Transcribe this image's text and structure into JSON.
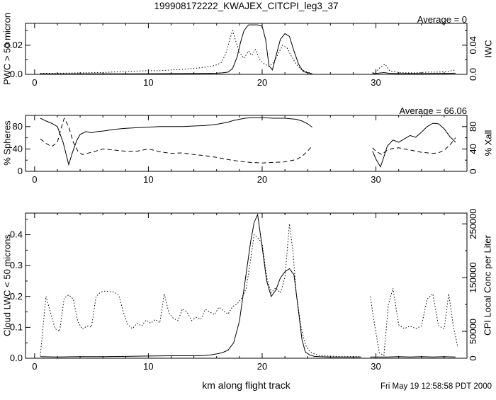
{
  "title": "199908172222_KWAJEX_CITCPI_leg3_37",
  "timestamp": "Fri May 19 12:58:58 PDT 2000",
  "colors": {
    "foreground": "#000000",
    "background": "#ffffff"
  },
  "chart_data": [
    {
      "type": "line",
      "annotation": "Average = 0",
      "xlim": [
        -0.8,
        38
      ],
      "x_ticks": [
        0,
        10,
        20,
        30
      ],
      "left": {
        "title": "PWC > 50 micron",
        "lim": [
          0,
          0.035
        ],
        "ticks": [
          {
            "v": 0,
            "label": "0.0"
          },
          {
            "v": 0.02,
            "label": "0.02"
          }
        ],
        "minor": [
          0.01,
          0.03
        ]
      },
      "right": {
        "title": "IWC",
        "lim": [
          0,
          0.07
        ],
        "ticks": [
          {
            "v": 0,
            "label": "0.0"
          },
          {
            "v": 0.04,
            "label": "0.04"
          }
        ],
        "minor": [
          0.02,
          0.06
        ]
      },
      "series": [
        {
          "name": "PWC > 50 micron",
          "axis": "left",
          "style": "solid",
          "x": [
            0.5,
            3,
            6,
            9,
            12,
            14,
            15,
            16,
            16.5,
            17,
            17.4,
            17.8,
            18.1,
            18.4,
            18.8,
            19.2,
            19.6,
            20,
            20.3,
            20.6,
            20.9,
            21.2,
            21.6,
            22,
            22.4,
            22.8,
            23.2,
            23.6,
            24,
            24.4,
            27,
            29.7,
            30.2,
            30.7,
            31.2,
            32,
            33,
            34,
            35,
            36,
            37
          ],
          "y": [
            0.0003,
            0.0003,
            0.0004,
            0.0004,
            0.0005,
            0.0006,
            0.0007,
            0.0008,
            0.001,
            0.0015,
            0.004,
            0.012,
            0.022,
            0.03,
            0.034,
            0.034,
            0.034,
            0.033,
            0.024,
            0.006,
            0.003,
            0.012,
            0.024,
            0.028,
            0.026,
            0.016,
            0.007,
            0.002,
            0.001,
            0.0005,
            null,
            0.0005,
            0.0008,
            0.0012,
            0.0007,
            0.0005,
            0.0005,
            0.0005,
            0.0006,
            0.0007,
            0.0008
          ]
        },
        {
          "name": "IWC",
          "axis": "right",
          "style": "dotted",
          "x": [
            0.5,
            2,
            4,
            6,
            8,
            10,
            11,
            12,
            13,
            14,
            14.5,
            15,
            15.5,
            16,
            16.4,
            16.8,
            17.1,
            17.4,
            17.7,
            18,
            18.4,
            18.8,
            19.1,
            19.4,
            19.8,
            20.2,
            20.6,
            21,
            21.4,
            21.8,
            22.2,
            22.6,
            23,
            23.4,
            23.8,
            24.2,
            27,
            29.7,
            30,
            30.4,
            30.8,
            31.2,
            31.8,
            32.5,
            33.5,
            34.5,
            35.5,
            36.3,
            37
          ],
          "y": [
            0.0015,
            0.0015,
            0.002,
            0.0025,
            0.004,
            0.005,
            0.005,
            0.006,
            0.007,
            0.008,
            0.009,
            0.01,
            0.011,
            0.013,
            0.016,
            0.028,
            0.045,
            0.06,
            0.045,
            0.03,
            0.022,
            0.032,
            0.026,
            0.034,
            0.02,
            0.014,
            0.011,
            0.016,
            0.028,
            0.04,
            0.036,
            0.024,
            0.014,
            0.007,
            0.004,
            0.002,
            null,
            0.002,
            0.003,
            0.01,
            0.014,
            0.005,
            0.003,
            0.002,
            0.002,
            0.003,
            0.003,
            0.004,
            0.006
          ]
        }
      ]
    },
    {
      "type": "line",
      "annotation": "Average = 66.06",
      "xlim": [
        -0.8,
        38
      ],
      "x_ticks": [
        0,
        10,
        20,
        30
      ],
      "left": {
        "title": "% Spheres",
        "lim": [
          0,
          100
        ],
        "ticks": [
          {
            "v": 0,
            "label": "0"
          },
          {
            "v": 40,
            "label": "40"
          },
          {
            "v": 80,
            "label": "80"
          }
        ],
        "minor": [
          20,
          60
        ]
      },
      "right": {
        "title": "% Xall",
        "lim": [
          0,
          100
        ],
        "ticks": [
          {
            "v": 0,
            "label": "0"
          },
          {
            "v": 40,
            "label": "40"
          },
          {
            "v": 80,
            "label": "80"
          }
        ],
        "minor": [
          20,
          60
        ]
      },
      "series": [
        {
          "name": "% Spheres",
          "axis": "left",
          "style": "solid",
          "x": [
            0.5,
            1,
            1.5,
            2,
            2.5,
            3,
            3.3,
            3.7,
            4,
            4.5,
            5,
            5.5,
            6,
            7,
            8,
            9,
            10,
            11,
            12,
            13,
            14,
            15,
            16,
            16.5,
            17,
            17.5,
            18,
            18.5,
            19,
            20,
            21,
            22,
            23,
            23.5,
            24,
            24.4,
            27,
            29.7,
            30,
            30.4,
            30.7,
            31,
            31.5,
            32,
            32.5,
            33,
            33.5,
            34,
            34.5,
            35,
            35.5,
            36,
            36.5,
            37
          ],
          "y": [
            95,
            90,
            86,
            80,
            52,
            12,
            32,
            55,
            66,
            71,
            69,
            71,
            72,
            75,
            77,
            78,
            79,
            80,
            80,
            80,
            81,
            82,
            84,
            86,
            88,
            91,
            93,
            95,
            96,
            96,
            95,
            95,
            93,
            90,
            85,
            79,
            null,
            36,
            22,
            8,
            26,
            45,
            56,
            52,
            58,
            64,
            61,
            70,
            80,
            86,
            85,
            76,
            62,
            52
          ]
        },
        {
          "name": "% Xall",
          "axis": "right",
          "style": "dashed",
          "x": [
            0.5,
            1,
            1.5,
            2,
            2.3,
            2.6,
            3,
            3.4,
            3.8,
            4.2,
            4.6,
            5,
            5.5,
            6,
            7,
            8,
            9,
            10,
            11,
            12,
            13,
            14,
            15,
            16,
            17,
            18,
            19,
            20,
            21,
            22,
            23,
            23.5,
            24,
            24.4,
            27,
            29.7,
            30,
            30.5,
            31,
            31.5,
            32,
            32.5,
            33,
            34,
            35,
            35.5,
            36,
            36.5,
            37
          ],
          "y": [
            58,
            50,
            44,
            52,
            75,
            95,
            80,
            52,
            36,
            30,
            32,
            34,
            37,
            40,
            38,
            36,
            36,
            40,
            35,
            32,
            33,
            30,
            28,
            25,
            21,
            18,
            16,
            15,
            16,
            17,
            21,
            27,
            36,
            46,
            null,
            42,
            36,
            30,
            38,
            41,
            42,
            40,
            38,
            34,
            32,
            33,
            38,
            47,
            60
          ]
        }
      ]
    },
    {
      "type": "line",
      "annotation": "",
      "xlabel": "km along flight track",
      "xlim": [
        -0.8,
        38
      ],
      "x_ticks": [
        0,
        10,
        20,
        30
      ],
      "left": {
        "title": "Cloud LWC < 50 microns",
        "lim": [
          0,
          0.47
        ],
        "ticks": [
          {
            "v": 0,
            "label": "0.0"
          },
          {
            "v": 0.1,
            "label": "0.1"
          },
          {
            "v": 0.2,
            "label": "0.2"
          },
          {
            "v": 0.3,
            "label": "0.3"
          },
          {
            "v": 0.4,
            "label": "0.4"
          }
        ],
        "minor": [
          0.05,
          0.15,
          0.25,
          0.35,
          0.45
        ]
      },
      "right": {
        "title": "CPI Local Conc per Liter",
        "lim": [
          0,
          270000
        ],
        "ticks": [
          {
            "v": 0,
            "label": "0"
          },
          {
            "v": 50000,
            "label": "50000"
          },
          {
            "v": 150000,
            "label": "150000"
          },
          {
            "v": 250000,
            "label": "250000"
          }
        ],
        "minor": [
          100000,
          200000
        ]
      },
      "series": [
        {
          "name": "Cloud LWC < 50 microns",
          "axis": "left",
          "style": "solid",
          "x": [
            0.5,
            2,
            4,
            6,
            8,
            10,
            12,
            14,
            15,
            15.5,
            16,
            16.5,
            17,
            17.5,
            18,
            18.5,
            19,
            19.3,
            19.6,
            20,
            20.4,
            20.8,
            21.2,
            21.6,
            22,
            22.4,
            22.8,
            23.2,
            23.5,
            23.8,
            24.2,
            24.6,
            25,
            26,
            27,
            28,
            28.7,
            29.1,
            29.5,
            30,
            31,
            32,
            33,
            34,
            35,
            36,
            37
          ],
          "y": [
            0.005,
            0.004,
            0.005,
            0.005,
            0.006,
            0.007,
            0.008,
            0.008,
            0.009,
            0.011,
            0.014,
            0.018,
            0.026,
            0.05,
            0.12,
            0.25,
            0.38,
            0.44,
            0.465,
            0.36,
            0.25,
            0.2,
            0.22,
            0.26,
            0.28,
            0.29,
            0.27,
            0.15,
            0.06,
            0.02,
            0.01,
            0.006,
            0.005,
            0.004,
            0.004,
            0.004,
            0.004,
            null,
            0.004,
            0.004,
            0.004,
            0.005,
            0.004,
            0.005,
            0.004,
            0.005,
            0.004
          ]
        },
        {
          "name": "CPI Local Conc per Liter",
          "axis": "right",
          "style": "dotted",
          "x": [
            0.5,
            1,
            1.4,
            1.8,
            2.2,
            2.6,
            3,
            3.4,
            3.8,
            4.2,
            4.6,
            5,
            5.4,
            5.8,
            6.2,
            6.6,
            7,
            7.4,
            7.8,
            8.2,
            8.6,
            9,
            9.4,
            9.8,
            10.2,
            10.6,
            11,
            11.4,
            11.8,
            12.2,
            12.6,
            13,
            13.4,
            13.8,
            14.2,
            14.6,
            15,
            15.4,
            15.8,
            16.2,
            16.6,
            17,
            17.4,
            17.8,
            18.2,
            18.6,
            19,
            19.3,
            19.6,
            20,
            20.4,
            20.8,
            21.2,
            21.6,
            22,
            22.4,
            22.7,
            23,
            23.4,
            23.8,
            24.2,
            24.6,
            25,
            26,
            27,
            28,
            28.7,
            29.1,
            29.5,
            29.9,
            30.3,
            30.7,
            31.1,
            31.5,
            32,
            32.5,
            33,
            33.5,
            34,
            34.5,
            35,
            35.5,
            36,
            36.4,
            36.8,
            37.2
          ],
          "y": [
            5000,
            115000,
            85000,
            55000,
            50000,
            112000,
            118000,
            110000,
            68000,
            54000,
            60000,
            58000,
            115000,
            123000,
            125000,
            124000,
            123000,
            117000,
            86000,
            62000,
            55000,
            65000,
            60000,
            71000,
            65000,
            72000,
            66000,
            120000,
            84000,
            74000,
            70000,
            92000,
            86000,
            70000,
            76000,
            72000,
            91000,
            86000,
            81000,
            95000,
            88000,
            82000,
            96000,
            101000,
            112000,
            130000,
            185000,
            230000,
            224000,
            214000,
            150000,
            122000,
            131000,
            122000,
            150000,
            250000,
            200000,
            120000,
            60000,
            25000,
            12000,
            8000,
            5000,
            4000,
            3000,
            3000,
            3000,
            null,
            115000,
            60000,
            10000,
            5000,
            100000,
            130000,
            62000,
            55000,
            60000,
            55000,
            60000,
            110000,
            120000,
            60000,
            55000,
            120000,
            60000,
            20000
          ]
        }
      ]
    }
  ]
}
